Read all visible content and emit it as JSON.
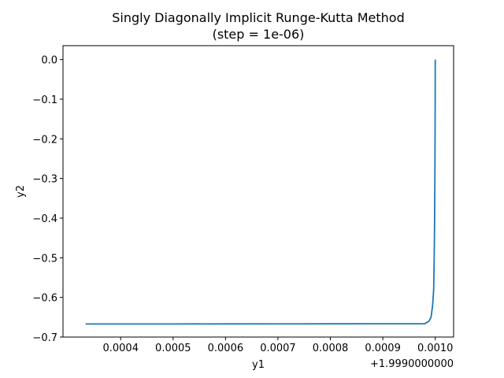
{
  "chart_data": {
    "type": "line",
    "title": "Singly Diagonally Implicit Runge-Kutta Method",
    "subtitle": "(step = 1e-06)",
    "xlabel": "y1",
    "ylabel": "y2",
    "x_offset": 1.999,
    "x_offset_label": "+1.9990000000",
    "xlim": [
      0.00029,
      0.001035
    ],
    "ylim": [
      -0.7,
      0.035
    ],
    "x_ticks": [
      0.0004,
      0.0005,
      0.0006,
      0.0007,
      0.0008,
      0.0009,
      0.001
    ],
    "x_tick_labels": [
      "0.0004",
      "0.0005",
      "0.0006",
      "0.0007",
      "0.0008",
      "0.0009",
      "0.0010"
    ],
    "y_ticks": [
      0.0,
      -0.1,
      -0.2,
      -0.3,
      -0.4,
      -0.5,
      -0.6,
      -0.7
    ],
    "y_tick_labels": [
      "0.0",
      "−0.1",
      "−0.2",
      "−0.3",
      "−0.4",
      "−0.5",
      "−0.6",
      "−0.7"
    ],
    "grid": false,
    "color": "#1f77b4",
    "series": [
      {
        "x": [
          0.000333,
          0.0004,
          0.0005,
          0.0006,
          0.0007,
          0.0008,
          0.0009,
          0.00098,
          0.000988,
          0.000992,
          0.000995,
          0.000997,
          0.000998,
          0.0009988,
          0.0009994,
          0.0009998,
          0.001
        ],
        "y": [
          -0.667,
          -0.667,
          -0.667,
          -0.6668,
          -0.6667,
          -0.6666,
          -0.6665,
          -0.6663,
          -0.66,
          -0.65,
          -0.62,
          -0.58,
          -0.5,
          -0.4,
          -0.28,
          -0.14,
          0.0
        ]
      }
    ]
  }
}
